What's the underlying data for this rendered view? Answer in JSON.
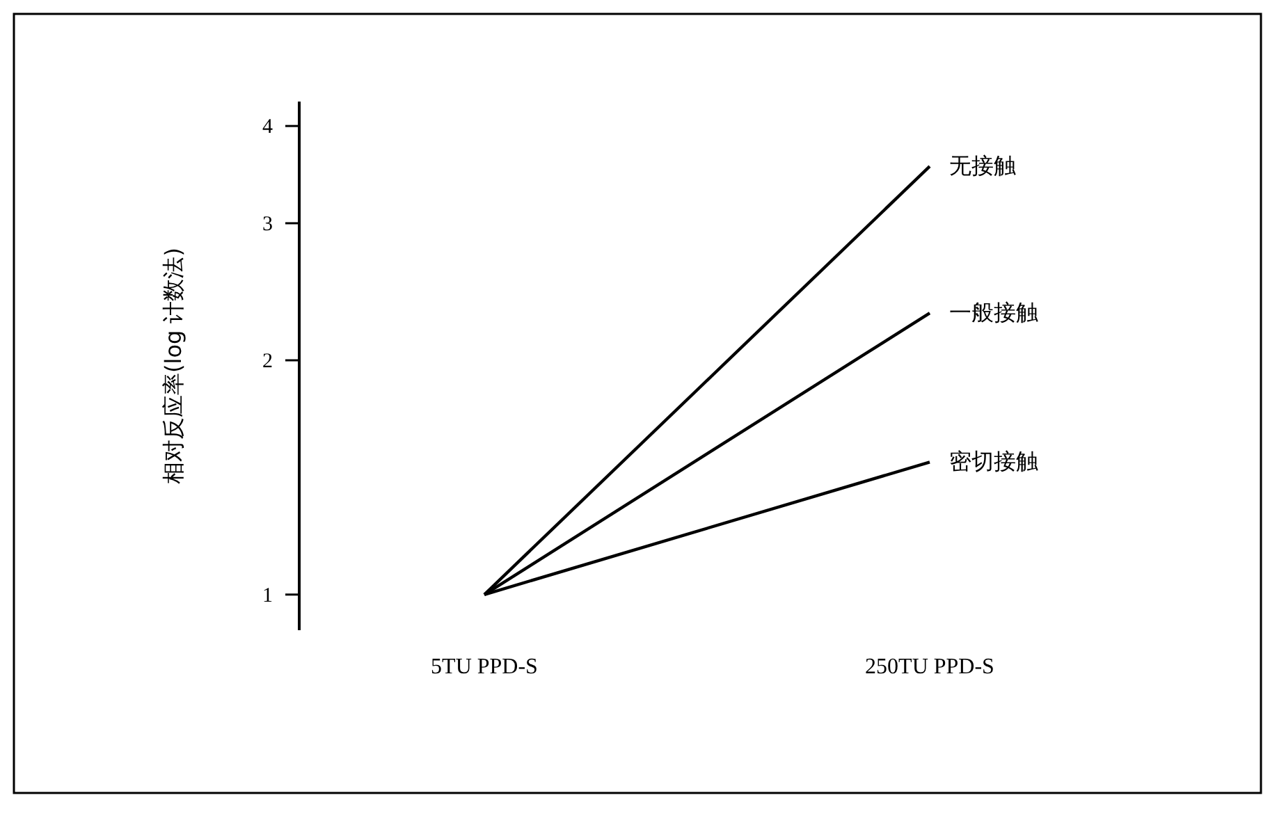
{
  "chart_data": {
    "type": "line",
    "ylabel": "相对反应率(log 计数法)",
    "categories": [
      "5TU PPD-S",
      "250TU PPD-S"
    ],
    "series": [
      {
        "name": "无接触",
        "color": "#000000",
        "values": [
          1,
          3.55
        ]
      },
      {
        "name": "一般接触",
        "color": "#000000",
        "values": [
          1,
          2.3
        ]
      },
      {
        "name": "密切接触",
        "color": "#000000",
        "values": [
          1,
          1.48
        ]
      }
    ],
    "log": true,
    "ylim": [
      0.9,
      4.3
    ],
    "yticks": [
      1,
      2,
      3,
      4
    ],
    "grid": false,
    "legend": false,
    "line_style": "solid"
  }
}
